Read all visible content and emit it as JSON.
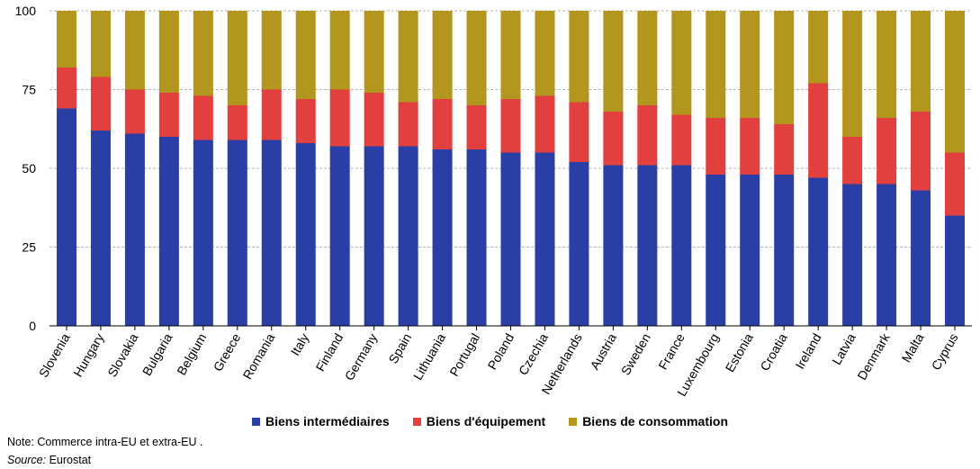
{
  "chart_data": {
    "type": "bar",
    "stacked": true,
    "categories": [
      "Slovenia",
      "Hungary",
      "Slovakia",
      "Bulgaria",
      "Belgium",
      "Greece",
      "Romania",
      "Italy",
      "Finland",
      "Germany",
      "Spain",
      "Lithuania",
      "Portugal",
      "Poland",
      "Czechia",
      "Netherlands",
      "Austria",
      "Sweden",
      "France",
      "Luxembourg",
      "Estonia",
      "Croatia",
      "Ireland",
      "Latvia",
      "Denmark",
      "Malta",
      "Cyprus"
    ],
    "series": [
      {
        "name": "Biens intermédiaires",
        "color": "#2a3fa6",
        "values": [
          69,
          62,
          61,
          60,
          59,
          59,
          59,
          58,
          57,
          57,
          57,
          56,
          56,
          55,
          55,
          52,
          51,
          51,
          51,
          48,
          48,
          48,
          47,
          45,
          45,
          43,
          35
        ]
      },
      {
        "name": "Biens d'équipement",
        "color": "#e2403f",
        "values": [
          13,
          17,
          14,
          14,
          14,
          11,
          16,
          14,
          18,
          17,
          14,
          16,
          14,
          17,
          18,
          19,
          17,
          19,
          16,
          18,
          18,
          16,
          30,
          15,
          21,
          25,
          20
        ]
      },
      {
        "name": "Biens de consommation",
        "color": "#b3961e",
        "values": [
          18,
          21,
          25,
          26,
          27,
          30,
          25,
          28,
          25,
          26,
          29,
          28,
          30,
          28,
          27,
          29,
          32,
          30,
          33,
          34,
          34,
          36,
          23,
          40,
          34,
          32,
          45
        ]
      }
    ],
    "yticks": [
      0,
      25,
      50,
      75,
      100
    ],
    "ylim": [
      0,
      100
    ],
    "grid": true,
    "legend_position": "bottom"
  },
  "footer": {
    "note": "Note: Commerce intra-EU et extra-EU .",
    "source_label": "Source:",
    "source_text": " Eurostat"
  }
}
